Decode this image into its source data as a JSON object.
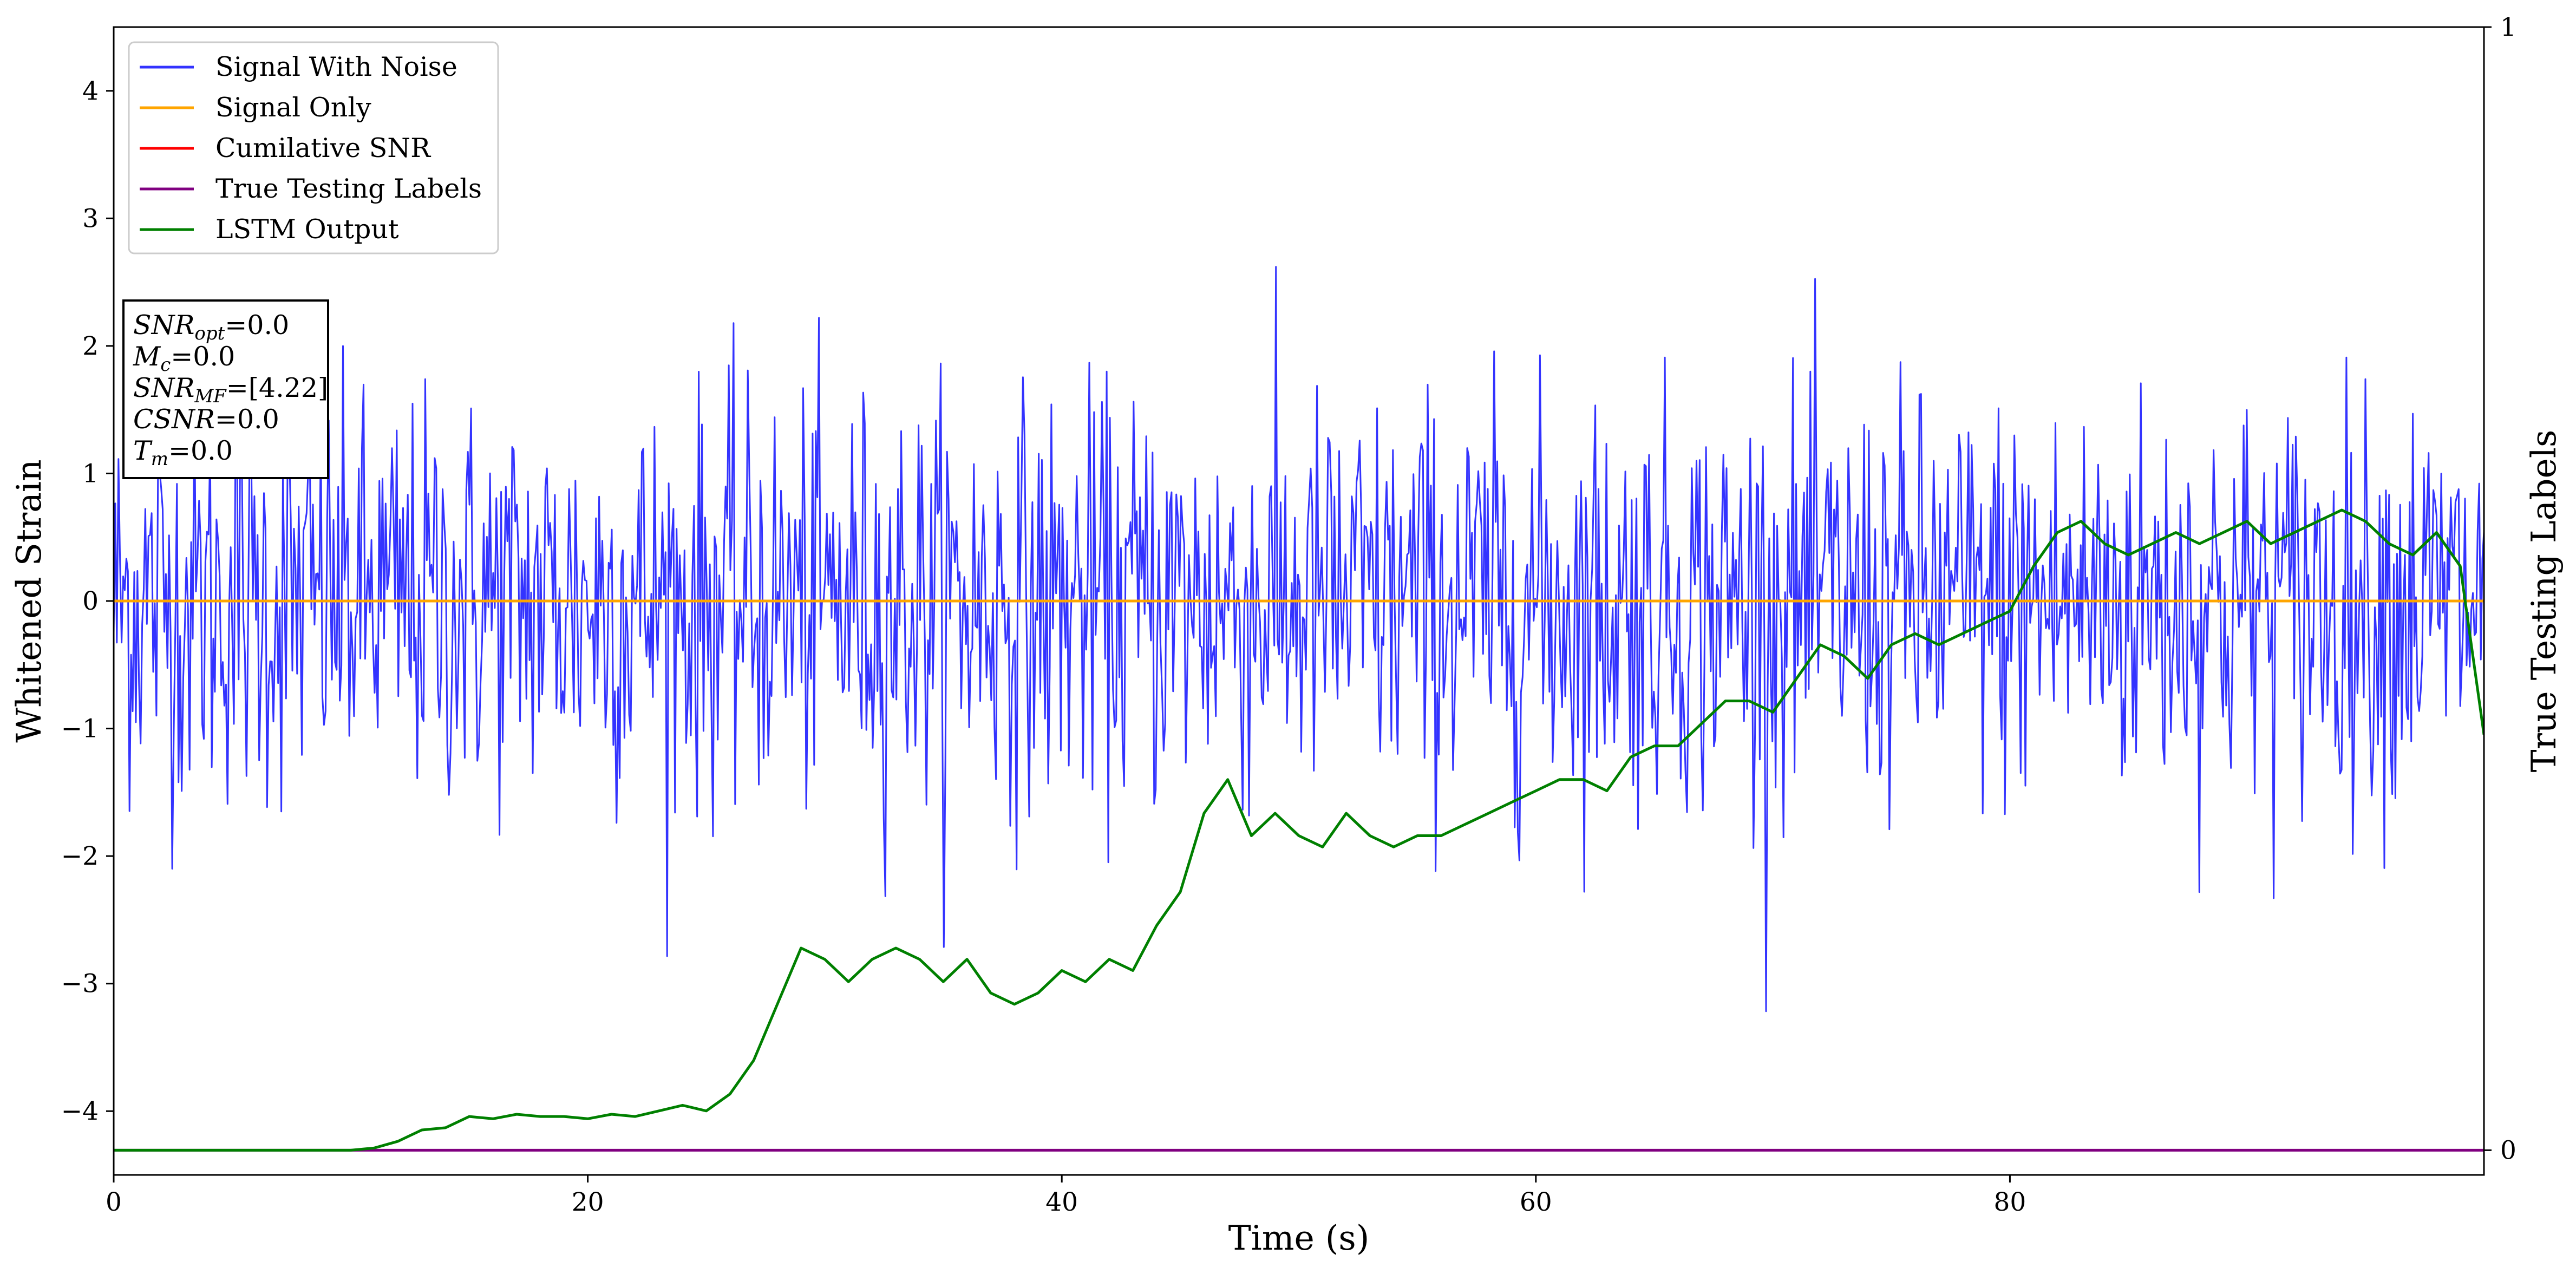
{
  "chart_data": {
    "type": "line",
    "xlabel": "Time (s)",
    "ylabel": "Whitened Strain",
    "y2label": "True Testing Labels",
    "xlim": [
      0,
      100
    ],
    "ylim": [
      -4.5,
      4.5
    ],
    "y2lim": [
      -0.022,
      1.0
    ],
    "x_ticks": [
      0,
      20,
      40,
      60,
      80
    ],
    "x_tick_labels": [
      "0",
      "20",
      "40",
      "60",
      "80"
    ],
    "y_ticks": [
      -4,
      -3,
      -2,
      -1,
      0,
      1,
      2,
      3,
      4
    ],
    "y_tick_labels": [
      "−4",
      "−3",
      "−2",
      "−1",
      "0",
      "1",
      "2",
      "3",
      "4"
    ],
    "y2_ticks": [
      0,
      1
    ],
    "y2_tick_labels": [
      "0",
      "1"
    ],
    "grid": false,
    "legend_position": "upper-left",
    "series": [
      {
        "name": "Signal With Noise",
        "color": "#3333ff",
        "axis": "left",
        "kind": "noise",
        "sigma": 0.8,
        "min": -4.1,
        "max": 3.9,
        "samples_shown": 1500
      },
      {
        "name": "Signal Only",
        "color": "#ffa500",
        "axis": "left",
        "x": [
          0,
          100
        ],
        "y": [
          0,
          0
        ]
      },
      {
        "name": "Cumilative SNR",
        "color": "#ff0000",
        "axis": "left",
        "x": [],
        "y": []
      },
      {
        "name": "True Testing Labels",
        "color": "#800080",
        "axis": "right",
        "x": [
          0,
          100
        ],
        "y": [
          0,
          0
        ]
      },
      {
        "name": "LSTM Output",
        "color": "#008000",
        "axis": "right",
        "x": [
          0,
          5,
          10,
          11,
          12,
          13,
          14,
          15,
          16,
          17,
          18,
          19,
          20,
          21,
          22,
          23,
          24,
          25,
          26,
          27,
          28,
          29,
          30,
          31,
          32,
          33,
          34,
          35,
          36,
          37,
          38,
          39,
          40,
          41,
          42,
          43,
          44,
          45,
          46,
          47,
          48,
          49,
          50,
          51,
          52,
          53,
          54,
          55,
          56,
          57,
          58,
          59,
          60,
          61,
          62,
          63,
          64,
          65,
          66,
          67,
          68,
          69,
          70,
          71,
          72,
          73,
          74,
          75,
          76,
          77,
          78,
          79,
          80,
          81,
          82,
          83,
          84,
          85,
          86,
          87,
          88,
          89,
          90,
          91,
          92,
          93,
          94,
          95,
          96,
          97,
          98,
          99,
          100
        ],
        "y": [
          0.0,
          0.0,
          0.0,
          0.002,
          0.008,
          0.018,
          0.02,
          0.03,
          0.028,
          0.032,
          0.03,
          0.03,
          0.028,
          0.032,
          0.03,
          0.035,
          0.04,
          0.035,
          0.05,
          0.08,
          0.13,
          0.18,
          0.17,
          0.15,
          0.17,
          0.18,
          0.17,
          0.15,
          0.17,
          0.14,
          0.13,
          0.14,
          0.16,
          0.15,
          0.17,
          0.16,
          0.2,
          0.23,
          0.3,
          0.33,
          0.28,
          0.3,
          0.28,
          0.27,
          0.3,
          0.28,
          0.27,
          0.28,
          0.28,
          0.29,
          0.3,
          0.31,
          0.32,
          0.33,
          0.33,
          0.32,
          0.35,
          0.36,
          0.36,
          0.38,
          0.4,
          0.4,
          0.39,
          0.42,
          0.45,
          0.44,
          0.42,
          0.45,
          0.46,
          0.45,
          0.46,
          0.47,
          0.48,
          0.52,
          0.55,
          0.56,
          0.54,
          0.53,
          0.54,
          0.55,
          0.54,
          0.55,
          0.56,
          0.54,
          0.55,
          0.56,
          0.57,
          0.56,
          0.54,
          0.53,
          0.55,
          0.52,
          0.37
        ]
      }
    ],
    "annotation_box": {
      "lines": [
        {
          "sym": "SNR",
          "sub": "opt",
          "value": "=0.0"
        },
        {
          "sym": "M",
          "sub": "c",
          "value": "=0.0"
        },
        {
          "sym": "SNR",
          "sub": "MF",
          "value": "=[4.22]"
        },
        {
          "sym": "CSNR",
          "sub": "",
          "value": "=0.0"
        },
        {
          "sym": "T",
          "sub": "m",
          "value": "=0.0"
        }
      ]
    }
  }
}
